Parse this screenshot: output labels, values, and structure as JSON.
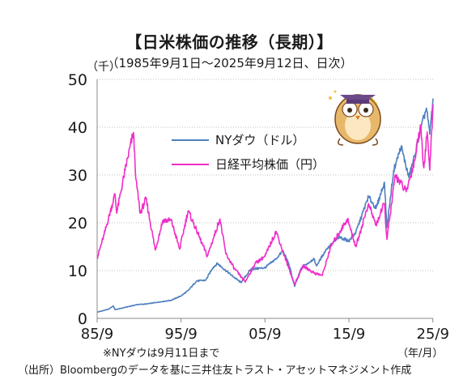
{
  "title": "【日米株価の推移（長期）】",
  "subtitle": "（1985年9月1日～2025年9月12日、日次）",
  "unit_label": "（千）",
  "x_unit_label": "（年/月）",
  "note": "※NYダウは9月11日まで",
  "source": "（出所）Bloombergのデータを基に三井住友トラスト・アセットマネジメント作成",
  "colors": {
    "dow": "#4f7fbf",
    "nikkei": "#ef2ec8",
    "axis": "#888888",
    "grid": "#bfbfbf"
  },
  "chart_data": {
    "type": "line",
    "title": "【日米株価の推移（長期）】",
    "xlabel": "（年/月）",
    "ylabel": "（千）",
    "x_range": [
      1985.67,
      2025.7
    ],
    "ylim": [
      0,
      50
    ],
    "y_ticks": [
      0,
      10,
      20,
      30,
      40,
      50
    ],
    "x_ticks": [
      {
        "label": "85/9",
        "x": 1985.67
      },
      {
        "label": "95/9",
        "x": 1995.67
      },
      {
        "label": "05/9",
        "x": 2005.67
      },
      {
        "label": "15/9",
        "x": 2015.67
      },
      {
        "label": "25/9",
        "x": 2025.67
      }
    ],
    "grid": true,
    "legend_position": "upper-center",
    "series": [
      {
        "name": "NYダウ（ドル）",
        "color": "#4f7fbf",
        "points": [
          [
            1985.67,
            1.3
          ],
          [
            1987.0,
            1.9
          ],
          [
            1987.6,
            2.6
          ],
          [
            1987.8,
            1.8
          ],
          [
            1989.0,
            2.3
          ],
          [
            1990.5,
            2.9
          ],
          [
            1991.5,
            3.0
          ],
          [
            1993.0,
            3.4
          ],
          [
            1994.5,
            3.8
          ],
          [
            1995.67,
            4.7
          ],
          [
            1996.5,
            5.8
          ],
          [
            1997.5,
            7.8
          ],
          [
            1998.6,
            8.0
          ],
          [
            1999.5,
            10.7
          ],
          [
            2000.0,
            11.5
          ],
          [
            2000.6,
            10.6
          ],
          [
            2001.7,
            9.0
          ],
          [
            2002.8,
            7.5
          ],
          [
            2003.0,
            8.0
          ],
          [
            2004.0,
            10.3
          ],
          [
            2005.67,
            10.6
          ],
          [
            2007.0,
            12.5
          ],
          [
            2007.8,
            14.1
          ],
          [
            2008.5,
            11.5
          ],
          [
            2009.2,
            6.7
          ],
          [
            2010.0,
            10.5
          ],
          [
            2011.5,
            12.5
          ],
          [
            2011.8,
            11.0
          ],
          [
            2013.0,
            14.5
          ],
          [
            2014.5,
            17.0
          ],
          [
            2015.67,
            16.2
          ],
          [
            2016.5,
            18.0
          ],
          [
            2018.0,
            25.5
          ],
          [
            2018.9,
            23.0
          ],
          [
            2019.9,
            28.5
          ],
          [
            2020.2,
            19.0
          ],
          [
            2021.0,
            31.0
          ],
          [
            2021.9,
            36.0
          ],
          [
            2022.8,
            29.5
          ],
          [
            2023.5,
            34.0
          ],
          [
            2024.0,
            38.0
          ],
          [
            2024.9,
            44.0
          ],
          [
            2025.3,
            38.5
          ],
          [
            2025.69,
            46.0
          ]
        ]
      },
      {
        "name": "日経平均株価（円）",
        "color": "#ef2ec8",
        "points": [
          [
            1985.67,
            12.6
          ],
          [
            1986.5,
            17.5
          ],
          [
            1987.8,
            26.0
          ],
          [
            1988.0,
            22.0
          ],
          [
            1989.0,
            31.0
          ],
          [
            1989.99,
            38.9
          ],
          [
            1990.3,
            29.0
          ],
          [
            1990.8,
            22.0
          ],
          [
            1991.5,
            25.0
          ],
          [
            1992.6,
            14.3
          ],
          [
            1993.5,
            20.5
          ],
          [
            1994.5,
            20.5
          ],
          [
            1995.5,
            14.5
          ],
          [
            1996.5,
            22.5
          ],
          [
            1997.5,
            18.5
          ],
          [
            1998.8,
            13.0
          ],
          [
            2000.3,
            20.8
          ],
          [
            2001.0,
            13.5
          ],
          [
            2002.0,
            10.5
          ],
          [
            2003.3,
            7.6
          ],
          [
            2004.5,
            11.5
          ],
          [
            2005.67,
            13.0
          ],
          [
            2007.0,
            18.2
          ],
          [
            2008.0,
            13.0
          ],
          [
            2009.2,
            7.1
          ],
          [
            2010.2,
            11.0
          ],
          [
            2011.5,
            9.5
          ],
          [
            2012.5,
            9.0
          ],
          [
            2013.5,
            15.0
          ],
          [
            2015.5,
            20.8
          ],
          [
            2016.5,
            15.0
          ],
          [
            2018.0,
            24.0
          ],
          [
            2018.9,
            19.5
          ],
          [
            2019.9,
            24.0
          ],
          [
            2020.2,
            16.5
          ],
          [
            2021.2,
            30.0
          ],
          [
            2022.5,
            26.5
          ],
          [
            2023.5,
            33.0
          ],
          [
            2024.2,
            40.5
          ],
          [
            2024.6,
            31.5
          ],
          [
            2025.0,
            39.0
          ],
          [
            2025.3,
            31.0
          ],
          [
            2025.69,
            44.8
          ]
        ]
      }
    ]
  }
}
